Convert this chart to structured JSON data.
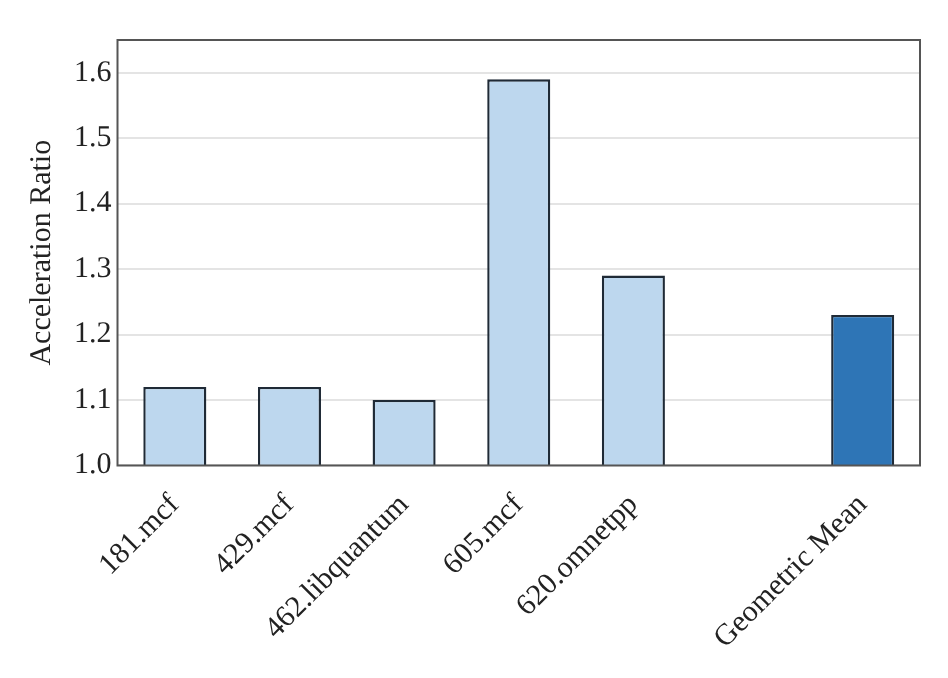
{
  "chart_data": {
    "type": "bar",
    "ylabel": "Acceleration Ratio",
    "categories": [
      "181.mcf",
      "429.mcf",
      "462.libquantum",
      "605.mcf",
      "620.omnetpp",
      null,
      "Geometric Mean"
    ],
    "values": [
      1.12,
      1.12,
      1.1,
      1.59,
      1.29,
      null,
      1.23
    ],
    "colors": [
      "#bdd7ee",
      "#bdd7ee",
      "#bdd7ee",
      "#bdd7ee",
      "#bdd7ee",
      "#bdd7ee",
      "#2e75b6"
    ],
    "ylim": [
      1.0,
      1.65
    ],
    "yticks": [
      {
        "value": 1.0,
        "label": "1.0"
      },
      1.1,
      1.2,
      1.3,
      1.4,
      1.5,
      1.6
    ],
    "grid": "y",
    "legend": false
  }
}
